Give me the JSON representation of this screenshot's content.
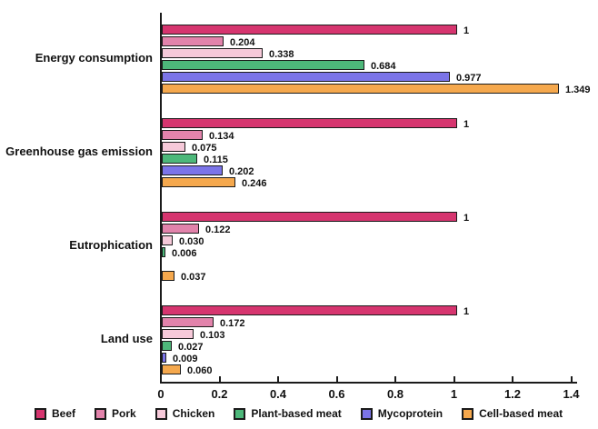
{
  "chart_data": {
    "type": "bar",
    "orientation": "horizontal",
    "title": "",
    "xlabel": "",
    "ylabel": "",
    "categories": [
      "Energy consumption",
      "Greenhouse gas emission",
      "Eutrophication",
      "Land use"
    ],
    "series": [
      {
        "name": "Beef",
        "color": "#d6356f",
        "values": [
          1,
          1,
          1,
          1
        ],
        "labels": [
          "1",
          "1",
          "1",
          "1"
        ]
      },
      {
        "name": "Pork",
        "color": "#e283ab",
        "values": [
          0.204,
          0.134,
          0.122,
          0.172
        ],
        "labels": [
          "0.204",
          "0.134",
          "0.122",
          "0.172"
        ]
      },
      {
        "name": "Chicken",
        "color": "#f6c9d9",
        "values": [
          0.338,
          0.075,
          0.03,
          0.103
        ],
        "labels": [
          "0.338",
          "0.075",
          "0.030",
          "0.103"
        ]
      },
      {
        "name": "Plant-based meat",
        "color": "#4db87a",
        "values": [
          0.684,
          0.115,
          0.006,
          0.027
        ],
        "labels": [
          "0.684",
          "0.115",
          "0.006",
          "0.027"
        ]
      },
      {
        "name": "Mycoprotein",
        "color": "#7b74e8",
        "values": [
          0.977,
          0.202,
          null,
          0.009
        ],
        "labels": [
          "0.977",
          "0.202",
          null,
          "0.009"
        ]
      },
      {
        "name": "Cell-based meat",
        "color": "#f5a84d",
        "values": [
          1.349,
          0.246,
          0.037,
          0.06
        ],
        "labels": [
          "1.349",
          "0.246",
          "0.037",
          "0.060"
        ]
      }
    ],
    "x_ticks": [
      "0",
      "0.2",
      "0.4",
      "0.6",
      "0.8",
      "1",
      "1.2",
      "1.4"
    ],
    "xlim": [
      0,
      1.4
    ],
    "grid": false,
    "legend_position": "bottom",
    "axis_color": "#1b1b1b",
    "bar_border_color": "#1b1b1b",
    "background_color": "#ffffff"
  }
}
